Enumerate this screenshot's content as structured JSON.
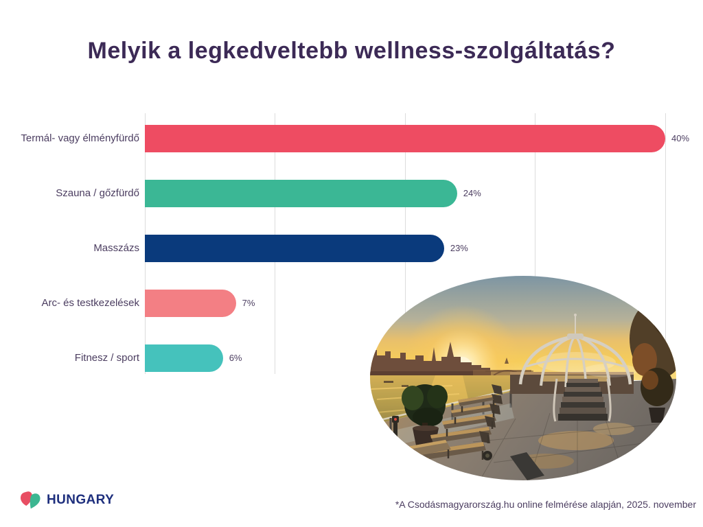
{
  "title": "Melyik a legkedveltebb wellness-szolgáltatás?",
  "chart_data": {
    "type": "bar",
    "orientation": "horizontal",
    "title": "Melyik a legkedveltebb wellness-szolgáltatás?",
    "categories": [
      "Termál- vagy élményfürdő",
      "Szauna / gőzfürdő",
      "Masszázs",
      "Arc- és testkezelések",
      "Fitnesz / sport"
    ],
    "values": [
      40,
      24,
      23,
      7,
      6
    ],
    "value_labels": [
      "40%",
      "24%",
      "23%",
      "7%",
      "6%"
    ],
    "bar_colors": [
      "#ee4c62",
      "#3bb795",
      "#0a3a7c",
      "#f37f84",
      "#45c2bc"
    ],
    "xlim": [
      0,
      40
    ],
    "gridline_ticks": [
      0,
      10,
      20,
      30,
      40
    ],
    "grid": "vertical-gridlines-only",
    "legend": "none",
    "axis_tick_labels": []
  },
  "photo": {
    "name": "rooftop-spa-terrace-sunset",
    "shape": "ellipse"
  },
  "footer": {
    "logo_text": "HUNGARY",
    "source_note": "*A Csodásmagyarország.hu online felmérése alapján, 2025. november"
  },
  "colors": {
    "background": "#ffffff",
    "title_text": "#3c2a56",
    "label_text": "#4b3d60",
    "gridline": "#dcdcdc",
    "logo_navy": "#1e2f7d",
    "logo_red": "#e84e63",
    "logo_green": "#3cb691"
  }
}
